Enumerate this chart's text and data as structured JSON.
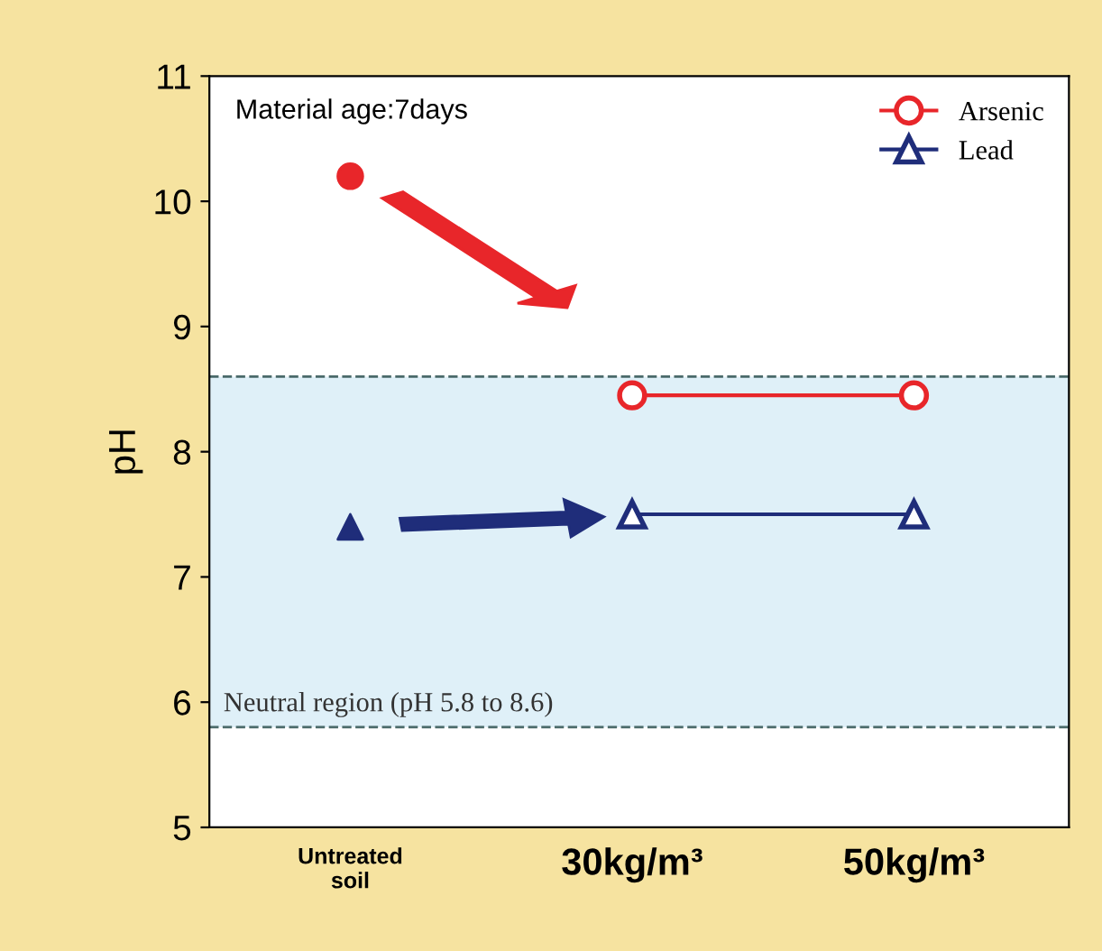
{
  "chart_data": {
    "type": "line",
    "ylabel": "pH",
    "categories": [
      "Untreated\nsoil",
      "30kg/m³",
      "50kg/m³"
    ],
    "series": [
      {
        "name": "Arsenic",
        "color": "#e8262a",
        "marker": "circle",
        "values": [
          null,
          8.45,
          8.45
        ]
      },
      {
        "name": "Lead",
        "color": "#1f2d7a",
        "marker": "triangle",
        "values": [
          null,
          7.5,
          7.5
        ]
      },
      {
        "type": "scatter",
        "color": "#e8262a",
        "marker": "circle",
        "values": [
          10.2,
          null,
          null
        ]
      },
      {
        "type": "scatter",
        "color": "#1f2d7a",
        "marker": "triangle",
        "values": [
          7.4,
          null,
          null
        ]
      }
    ],
    "ylim": [
      5,
      11
    ],
    "yticks": [
      5,
      6,
      7,
      8,
      9,
      10,
      11
    ],
    "bands": [
      {
        "axis": "y",
        "from": 5.8,
        "to": 8.6,
        "label": "Neutral region (pH 5.8 to 8.6)",
        "color": "#dff0f8"
      }
    ],
    "ref_lines": [
      {
        "axis": "y",
        "value": 8.6,
        "line_style": "dashed",
        "color": "#4a6a6a"
      },
      {
        "axis": "y",
        "value": 5.8,
        "line_style": "dashed",
        "color": "#4a6a6a"
      }
    ],
    "annotations": [
      "Material age:7days"
    ],
    "legend": "top right",
    "grid": false
  }
}
